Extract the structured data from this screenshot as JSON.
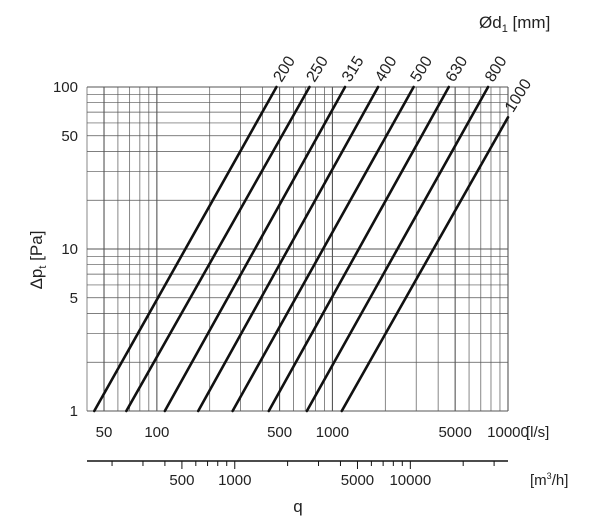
{
  "chart_data": {
    "type": "line",
    "title": "",
    "scale": "log-log",
    "grid": true,
    "x_primary": {
      "label": "[l/s]",
      "range": [
        40,
        10000
      ],
      "tick_labels": [
        "50",
        "100",
        "500",
        "1000",
        "5000",
        "10000"
      ],
      "tick_values": [
        50,
        100,
        500,
        1000,
        5000,
        10000
      ]
    },
    "x_secondary": {
      "label_prefix": "[m",
      "label_sup": "3",
      "label_suffix": "/h]",
      "factor_from_primary": 3.6,
      "tick_labels": [
        "500",
        "1000",
        "5000",
        "10000"
      ],
      "tick_values": [
        500,
        1000,
        5000,
        10000
      ]
    },
    "x_title": "q",
    "y": {
      "label_main": "Δp",
      "label_sub": "t",
      "label_unit": " [Pa]",
      "range": [
        1,
        100
      ],
      "tick_labels": [
        "1",
        "5",
        "10",
        "50",
        "100"
      ],
      "tick_values": [
        1,
        5,
        10,
        50,
        100
      ]
    },
    "legend_title": {
      "main": "Ød",
      "sub": "1",
      "unit": " [mm]"
    },
    "series": [
      {
        "name": "200",
        "x": [
          44,
          480
        ],
        "y": [
          1,
          100
        ]
      },
      {
        "name": "250",
        "x": [
          67,
          740
        ],
        "y": [
          1,
          100
        ]
      },
      {
        "name": "315",
        "x": [
          111,
          1180
        ],
        "y": [
          1,
          100
        ]
      },
      {
        "name": "400",
        "x": [
          172,
          1820
        ],
        "y": [
          1,
          100
        ]
      },
      {
        "name": "500",
        "x": [
          270,
          2900
        ],
        "y": [
          1,
          100
        ]
      },
      {
        "name": "630",
        "x": [
          434,
          4600
        ],
        "y": [
          1,
          100
        ]
      },
      {
        "name": "800",
        "x": [
          715,
          7700
        ],
        "y": [
          1,
          100
        ]
      },
      {
        "name": "1000",
        "x": [
          1130,
          10000
        ],
        "y": [
          1,
          65
        ]
      }
    ]
  }
}
